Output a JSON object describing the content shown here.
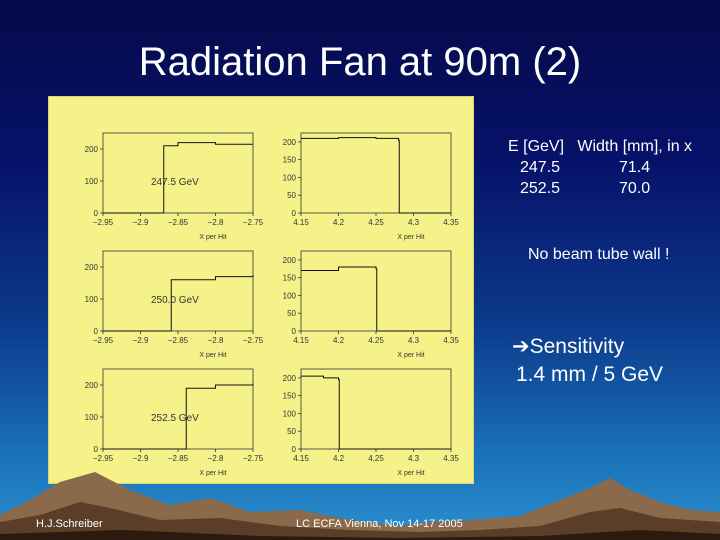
{
  "slide": {
    "title": "Radiation Fan at 90m (2)",
    "footer_author": "H.J.Schreiber",
    "footer_event": "LC ECFA Vienna, Nov 14-17 2005"
  },
  "table": {
    "header_energy": "E [GeV]",
    "header_width": "Width [mm], in x",
    "rows": [
      {
        "energy": "247.5",
        "width": "71.4"
      },
      {
        "energy": "252.5",
        "width": "70.0"
      }
    ]
  },
  "notes": {
    "no_beam_tube": "No beam tube wall !",
    "sensitivity_arrow": "➔",
    "sensitivity_title": "Sensitivity",
    "sensitivity_value": "1.4 mm / 5 GeV"
  },
  "plots": {
    "xlabel": "X per Hit",
    "energies": [
      "247.5 GeV",
      "250.0 GeV",
      "252.5 GeV"
    ],
    "left_ticks_x": [
      "−2.95",
      "−2.9",
      "−2.85",
      "−2.8",
      "−2.75"
    ],
    "right_ticks_x": [
      "4.15",
      "4.2",
      "4.25",
      "4.3",
      "4.35"
    ],
    "left_ticks_y": [
      "200",
      "100",
      "0"
    ],
    "right_ticks_y": [
      "200",
      "150",
      "100",
      "50",
      "0"
    ]
  },
  "chart_data": [
    {
      "type": "area",
      "xlabel": "X per Hit",
      "annotation": "247.5 GeV",
      "xlim": [
        -2.95,
        -2.75
      ],
      "ylim": [
        0,
        250
      ],
      "x": [
        -2.95,
        -2.87,
        -2.869,
        -2.85,
        -2.8,
        -2.75
      ],
      "values": [
        0,
        0,
        210,
        220,
        215,
        215
      ]
    },
    {
      "type": "area",
      "xlabel": "X per Hit",
      "xlim": [
        4.15,
        4.35
      ],
      "ylim": [
        0,
        225
      ],
      "x": [
        4.15,
        4.2,
        4.25,
        4.28,
        4.281,
        4.35
      ],
      "values": [
        210,
        212,
        210,
        205,
        0,
        0
      ]
    },
    {
      "type": "area",
      "xlabel": "X per Hit",
      "annotation": "250.0 GeV",
      "xlim": [
        -2.95,
        -2.75
      ],
      "ylim": [
        0,
        250
      ],
      "x": [
        -2.95,
        -2.86,
        -2.859,
        -2.8,
        -2.75
      ],
      "values": [
        0,
        0,
        160,
        170,
        175
      ]
    },
    {
      "type": "area",
      "xlabel": "X per Hit",
      "xlim": [
        4.15,
        4.35
      ],
      "ylim": [
        0,
        225
      ],
      "x": [
        4.15,
        4.2,
        4.25,
        4.251,
        4.35
      ],
      "values": [
        170,
        180,
        175,
        0,
        0
      ]
    },
    {
      "type": "area",
      "xlabel": "X per Hit",
      "annotation": "252.5 GeV",
      "xlim": [
        -2.95,
        -2.75
      ],
      "ylim": [
        0,
        250
      ],
      "x": [
        -2.95,
        -2.84,
        -2.839,
        -2.8,
        -2.75
      ],
      "values": [
        0,
        0,
        190,
        200,
        205
      ]
    },
    {
      "type": "area",
      "xlabel": "X per Hit",
      "xlim": [
        4.15,
        4.35
      ],
      "ylim": [
        0,
        225
      ],
      "x": [
        4.15,
        4.18,
        4.2,
        4.201,
        4.35
      ],
      "values": [
        205,
        200,
        195,
        0,
        0
      ]
    }
  ]
}
